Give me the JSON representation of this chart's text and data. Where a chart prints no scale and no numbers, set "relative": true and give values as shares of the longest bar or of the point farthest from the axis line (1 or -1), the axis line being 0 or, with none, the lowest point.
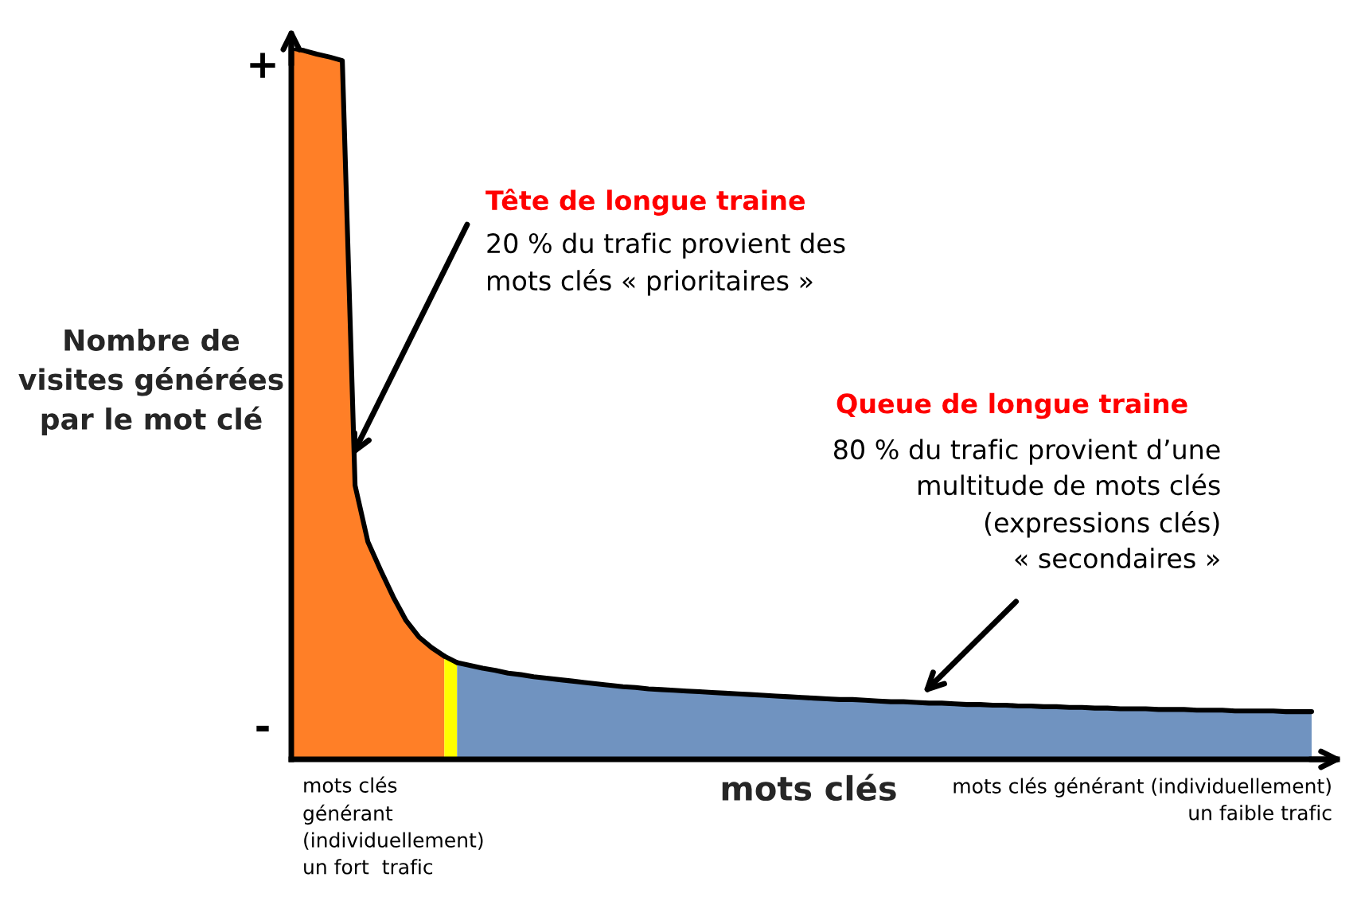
{
  "chart_data": {
    "type": "area",
    "relative": true,
    "xlabel": "mots clés",
    "ylabel": "Nombre de\nvisites générées\npar le mot clé",
    "categories": [
      null,
      null,
      null,
      null,
      null,
      null,
      null,
      null,
      null,
      null,
      null,
      null,
      null,
      null,
      null,
      null,
      null,
      null,
      null,
      null,
      null,
      null,
      null,
      null,
      null,
      null,
      null,
      null,
      null,
      null,
      null,
      null,
      null,
      null,
      null,
      null,
      null,
      null,
      null,
      null,
      null,
      null,
      null,
      null,
      null,
      null,
      null,
      null,
      null,
      null,
      null,
      null,
      null,
      null,
      null,
      null,
      null,
      null,
      null,
      null,
      null,
      null,
      null,
      null,
      null,
      null,
      null,
      null,
      null,
      null,
      null,
      null,
      null,
      null,
      null,
      null,
      null,
      null,
      null,
      null,
      null
    ],
    "series": [
      {
        "color": "#ff7f27",
        "values": [
          1.0,
          0.996,
          0.991,
          0.987,
          0.982,
          0.385,
          0.306,
          0.266,
          0.228,
          0.195,
          0.172,
          0.157,
          0.145,
          null,
          null,
          null,
          null,
          null,
          null,
          null,
          null,
          null,
          null,
          null,
          null,
          null,
          null,
          null,
          null,
          null,
          null,
          null,
          null,
          null,
          null,
          null,
          null,
          null,
          null,
          null,
          null,
          null,
          null,
          null,
          null,
          null,
          null,
          null,
          null,
          null,
          null,
          null,
          null,
          null,
          null,
          null,
          null,
          null,
          null,
          null,
          null,
          null,
          null,
          null,
          null,
          null,
          null,
          null,
          null,
          null,
          null,
          null,
          null,
          null,
          null,
          null,
          null,
          null,
          null,
          null,
          null
        ]
      },
      {
        "color": "#ffff00",
        "values": [
          null,
          null,
          null,
          null,
          null,
          null,
          null,
          null,
          null,
          null,
          null,
          null,
          0.145,
          0.136,
          null,
          null,
          null,
          null,
          null,
          null,
          null,
          null,
          null,
          null,
          null,
          null,
          null,
          null,
          null,
          null,
          null,
          null,
          null,
          null,
          null,
          null,
          null,
          null,
          null,
          null,
          null,
          null,
          null,
          null,
          null,
          null,
          null,
          null,
          null,
          null,
          null,
          null,
          null,
          null,
          null,
          null,
          null,
          null,
          null,
          null,
          null,
          null,
          null,
          null,
          null,
          null,
          null,
          null,
          null,
          null,
          null,
          null,
          null,
          null,
          null,
          null,
          null,
          null,
          null,
          null,
          null
        ]
      },
      {
        "color": "#7093c0",
        "values": [
          null,
          null,
          null,
          null,
          null,
          null,
          null,
          null,
          null,
          null,
          null,
          null,
          null,
          0.136,
          0.132,
          0.128,
          0.125,
          0.121,
          0.119,
          0.116,
          0.114,
          0.112,
          0.11,
          0.108,
          0.106,
          0.104,
          0.102,
          0.101,
          0.099,
          0.098,
          0.097,
          0.096,
          0.095,
          0.094,
          0.093,
          0.092,
          0.091,
          0.09,
          0.089,
          0.088,
          0.087,
          0.086,
          0.085,
          0.084,
          0.084,
          0.083,
          0.082,
          0.081,
          0.081,
          0.08,
          0.079,
          0.079,
          0.078,
          0.077,
          0.077,
          0.076,
          0.076,
          0.075,
          0.075,
          0.074,
          0.074,
          0.073,
          0.073,
          0.072,
          0.072,
          0.071,
          0.071,
          0.071,
          0.07,
          0.07,
          0.07,
          0.069,
          0.069,
          0.069,
          0.068,
          0.068,
          0.068,
          0.068,
          0.067,
          0.067,
          0.067
        ]
      }
    ],
    "annotations": [
      "+",
      "-",
      "Tête de longue traine",
      "20 % du trafic provient des\nmots clés « prioritaires »",
      "Queue de longue traine",
      "80 % du trafic provient d’une\nmultitude de mots clés\n(expressions clés)\n« secondaires »",
      "mots clés\ngénérant\n(individuellement)\nun fort  trafic",
      "mots clés générant (individuellement)\nun faible trafic"
    ]
  }
}
